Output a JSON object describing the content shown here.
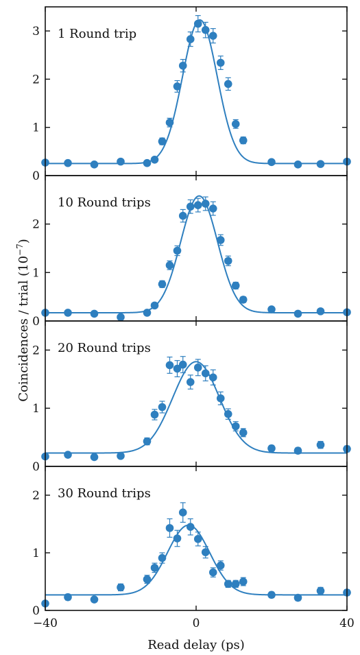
{
  "chart_data": {
    "type": "scatter",
    "xlabel": "Read delay (ps)",
    "ylabel": "Coincidences  / trial (10",
    "ylabel_exponent": "−7",
    "ylabel_close": ")",
    "xlim": [
      -40,
      40
    ],
    "x_ticks": [
      -40,
      0,
      40
    ],
    "x_tick_labels": [
      "−40",
      "0",
      "40"
    ],
    "colors": {
      "points": "#2e7fbf",
      "fit": "#2e7fbf",
      "errorbars": "#2e7fbf",
      "axes": "#111111"
    },
    "panels": [
      {
        "label": "1 Round trip",
        "ylim": [
          0,
          3.5
        ],
        "y_ticks": [
          0,
          1,
          2,
          3
        ],
        "y_tick_labels": [
          "0",
          "1",
          "2",
          "3"
        ],
        "fit": {
          "baseline": 0.25,
          "amplitude": 2.98,
          "center": 1.0,
          "sigma": 4.6
        },
        "points": [
          {
            "x": -40,
            "y": 0.27,
            "err": 0.04
          },
          {
            "x": -34,
            "y": 0.26,
            "err": 0.04
          },
          {
            "x": -27,
            "y": 0.23,
            "err": 0.04
          },
          {
            "x": -20,
            "y": 0.29,
            "err": 0.04
          },
          {
            "x": -13,
            "y": 0.26,
            "err": 0.04
          },
          {
            "x": -11,
            "y": 0.33,
            "err": 0.05
          },
          {
            "x": -9,
            "y": 0.71,
            "err": 0.07
          },
          {
            "x": -7,
            "y": 1.1,
            "err": 0.09
          },
          {
            "x": -5,
            "y": 1.85,
            "err": 0.12
          },
          {
            "x": -3.5,
            "y": 2.28,
            "err": 0.13
          },
          {
            "x": -1.5,
            "y": 2.83,
            "err": 0.15
          },
          {
            "x": 0.5,
            "y": 3.15,
            "err": 0.17
          },
          {
            "x": 2.5,
            "y": 3.02,
            "err": 0.16
          },
          {
            "x": 4.5,
            "y": 2.9,
            "err": 0.15
          },
          {
            "x": 6.5,
            "y": 2.34,
            "err": 0.14
          },
          {
            "x": 8.5,
            "y": 1.9,
            "err": 0.13
          },
          {
            "x": 10.5,
            "y": 1.07,
            "err": 0.09
          },
          {
            "x": 12.5,
            "y": 0.73,
            "err": 0.07
          },
          {
            "x": 20,
            "y": 0.28,
            "err": 0.04
          },
          {
            "x": 27,
            "y": 0.23,
            "err": 0.04
          },
          {
            "x": 33,
            "y": 0.24,
            "err": 0.04
          },
          {
            "x": 40,
            "y": 0.29,
            "err": 0.04
          }
        ]
      },
      {
        "label": "10 Round trips",
        "ylim": [
          0,
          3.0
        ],
        "y_ticks": [
          0,
          1,
          2
        ],
        "y_tick_labels": [
          "0",
          "1",
          "2"
        ],
        "fit": {
          "baseline": 0.17,
          "amplitude": 2.41,
          "center": 0.8,
          "sigma": 4.9
        },
        "points": [
          {
            "x": -40,
            "y": 0.17,
            "err": 0.04
          },
          {
            "x": -34,
            "y": 0.17,
            "err": 0.04
          },
          {
            "x": -27,
            "y": 0.15,
            "err": 0.04
          },
          {
            "x": -20,
            "y": 0.08,
            "err": 0.04
          },
          {
            "x": -13,
            "y": 0.17,
            "err": 0.04
          },
          {
            "x": -11,
            "y": 0.32,
            "err": 0.05
          },
          {
            "x": -9,
            "y": 0.76,
            "err": 0.07
          },
          {
            "x": -7,
            "y": 1.15,
            "err": 0.09
          },
          {
            "x": -5,
            "y": 1.45,
            "err": 0.1
          },
          {
            "x": -3.5,
            "y": 2.17,
            "err": 0.13
          },
          {
            "x": -1.5,
            "y": 2.36,
            "err": 0.14
          },
          {
            "x": 0.5,
            "y": 2.39,
            "err": 0.14
          },
          {
            "x": 2.5,
            "y": 2.42,
            "err": 0.14
          },
          {
            "x": 4.5,
            "y": 2.32,
            "err": 0.14
          },
          {
            "x": 6.5,
            "y": 1.67,
            "err": 0.11
          },
          {
            "x": 8.5,
            "y": 1.24,
            "err": 0.1
          },
          {
            "x": 10.5,
            "y": 0.73,
            "err": 0.07
          },
          {
            "x": 12.5,
            "y": 0.44,
            "err": 0.06
          },
          {
            "x": 20,
            "y": 0.24,
            "err": 0.04
          },
          {
            "x": 27,
            "y": 0.15,
            "err": 0.04
          },
          {
            "x": 33,
            "y": 0.2,
            "err": 0.04
          },
          {
            "x": 40,
            "y": 0.18,
            "err": 0.04
          }
        ]
      },
      {
        "label": "20 Round trips",
        "ylim": [
          0,
          2.5
        ],
        "y_ticks": [
          0,
          1,
          2
        ],
        "y_tick_labels": [
          "0",
          "1",
          "2"
        ],
        "fit": {
          "baseline": 0.23,
          "amplitude": 1.57,
          "center": 0.0,
          "sigma": 6.2
        },
        "points": [
          {
            "x": -40,
            "y": 0.17,
            "err": 0.04
          },
          {
            "x": -34,
            "y": 0.2,
            "err": 0.04
          },
          {
            "x": -27,
            "y": 0.16,
            "err": 0.04
          },
          {
            "x": -20,
            "y": 0.18,
            "err": 0.04
          },
          {
            "x": -13,
            "y": 0.43,
            "err": 0.06
          },
          {
            "x": -11,
            "y": 0.89,
            "err": 0.09
          },
          {
            "x": -9,
            "y": 1.02,
            "err": 0.1
          },
          {
            "x": -7,
            "y": 1.74,
            "err": 0.14
          },
          {
            "x": -5,
            "y": 1.68,
            "err": 0.14
          },
          {
            "x": -3.5,
            "y": 1.75,
            "err": 0.14
          },
          {
            "x": -1.5,
            "y": 1.45,
            "err": 0.12
          },
          {
            "x": 0.5,
            "y": 1.7,
            "err": 0.14
          },
          {
            "x": 2.5,
            "y": 1.6,
            "err": 0.13
          },
          {
            "x": 4.5,
            "y": 1.53,
            "err": 0.13
          },
          {
            "x": 6.5,
            "y": 1.17,
            "err": 0.11
          },
          {
            "x": 8.5,
            "y": 0.9,
            "err": 0.09
          },
          {
            "x": 10.5,
            "y": 0.69,
            "err": 0.08
          },
          {
            "x": 12.5,
            "y": 0.58,
            "err": 0.07
          },
          {
            "x": 20,
            "y": 0.31,
            "err": 0.05
          },
          {
            "x": 27,
            "y": 0.27,
            "err": 0.05
          },
          {
            "x": 33,
            "y": 0.37,
            "err": 0.06
          },
          {
            "x": 40,
            "y": 0.3,
            "err": 0.05
          }
        ]
      },
      {
        "label": "30 Round trips",
        "ylim": [
          0,
          2.5
        ],
        "y_ticks": [
          0,
          1,
          2
        ],
        "y_tick_labels": [
          "0",
          "1",
          "2"
        ],
        "fit": {
          "baseline": 0.27,
          "amplitude": 1.21,
          "center": -2.0,
          "sigma": 5.6
        },
        "points": [
          {
            "x": -40,
            "y": 0.12,
            "err": 0.04
          },
          {
            "x": -34,
            "y": 0.23,
            "err": 0.05
          },
          {
            "x": -27,
            "y": 0.19,
            "err": 0.04
          },
          {
            "x": -20,
            "y": 0.4,
            "err": 0.06
          },
          {
            "x": -13,
            "y": 0.54,
            "err": 0.07
          },
          {
            "x": -11,
            "y": 0.74,
            "err": 0.08
          },
          {
            "x": -9,
            "y": 0.91,
            "err": 0.09
          },
          {
            "x": -7,
            "y": 1.43,
            "err": 0.16
          },
          {
            "x": -5,
            "y": 1.25,
            "err": 0.14
          },
          {
            "x": -3.5,
            "y": 1.7,
            "err": 0.17
          },
          {
            "x": -1.5,
            "y": 1.45,
            "err": 0.14
          },
          {
            "x": 0.5,
            "y": 1.24,
            "err": 0.12
          },
          {
            "x": 2.5,
            "y": 1.01,
            "err": 0.1
          },
          {
            "x": 4.5,
            "y": 0.66,
            "err": 0.08
          },
          {
            "x": 6.5,
            "y": 0.78,
            "err": 0.08
          },
          {
            "x": 8.5,
            "y": 0.46,
            "err": 0.06
          },
          {
            "x": 10.5,
            "y": 0.46,
            "err": 0.06
          },
          {
            "x": 12.5,
            "y": 0.5,
            "err": 0.07
          },
          {
            "x": 20,
            "y": 0.27,
            "err": 0.05
          },
          {
            "x": 27,
            "y": 0.22,
            "err": 0.05
          },
          {
            "x": 33,
            "y": 0.34,
            "err": 0.06
          },
          {
            "x": 40,
            "y": 0.31,
            "err": 0.05
          }
        ]
      }
    ]
  }
}
